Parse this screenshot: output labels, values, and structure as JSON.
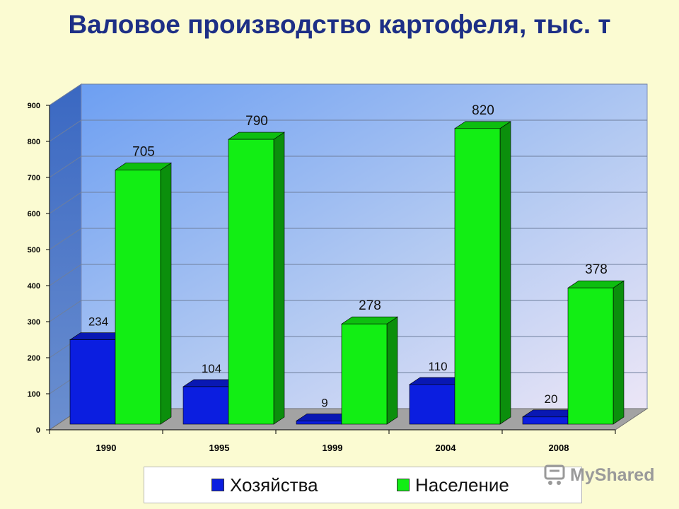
{
  "title": "Валовое производство картофеля, тыс. т",
  "watermark": "MyShared",
  "colors": {
    "background": "#fbfbd2",
    "title": "#1d2f86",
    "hozyaystva": "#0b1ee0",
    "naselenie": "#12ee14"
  },
  "legend": {
    "items": [
      {
        "label": "Хозяйства",
        "color": "#0b1ee0"
      },
      {
        "label": "Население",
        "color": "#12ee14"
      }
    ]
  },
  "chart_data": {
    "type": "bar",
    "title": "Валовое производство картофеля, тыс. т",
    "categories": [
      "1990",
      "1995",
      "1999",
      "2004",
      "2008"
    ],
    "series": [
      {
        "name": "Хозяйства",
        "values": [
          234,
          104,
          9,
          110,
          20
        ]
      },
      {
        "name": "Население",
        "values": [
          705,
          790,
          278,
          820,
          378
        ]
      }
    ],
    "ylim": [
      0,
      900
    ],
    "yticks": [
      "0",
      "100",
      "200",
      "300",
      "400",
      "500",
      "600",
      "700",
      "800",
      "900"
    ],
    "grid": true,
    "legend_position": "bottom",
    "style": "3d-clustered-column"
  }
}
